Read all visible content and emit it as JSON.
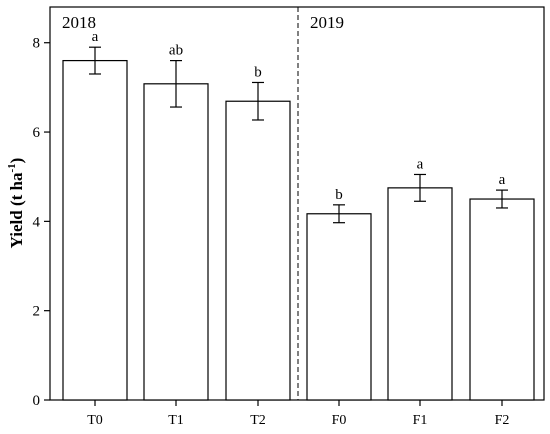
{
  "chart_data": {
    "type": "bar",
    "categories": [
      "T0",
      "T1",
      "T2",
      "F0",
      "F1",
      "F2"
    ],
    "values": [
      7.6,
      7.08,
      6.69,
      4.17,
      4.75,
      4.5
    ],
    "errors": [
      0.3,
      0.52,
      0.42,
      0.2,
      0.3,
      0.2
    ],
    "significance": [
      "a",
      "ab",
      "b",
      "b",
      "a",
      "a"
    ],
    "panels": [
      {
        "label": "2018",
        "categories": [
          "T0",
          "T1",
          "T2"
        ]
      },
      {
        "label": "2019",
        "categories": [
          "F0",
          "F1",
          "F2"
        ]
      }
    ],
    "ylabel_main": "Yield (t ha",
    "ylabel_sup": "-1",
    "ylabel_close": ")",
    "xlabel": "",
    "ylim": [
      0,
      8.8
    ],
    "yticks": [
      0,
      2,
      4,
      6,
      8
    ],
    "colors": {
      "bar_fill": "#ffffff",
      "stroke": "#000000"
    }
  }
}
